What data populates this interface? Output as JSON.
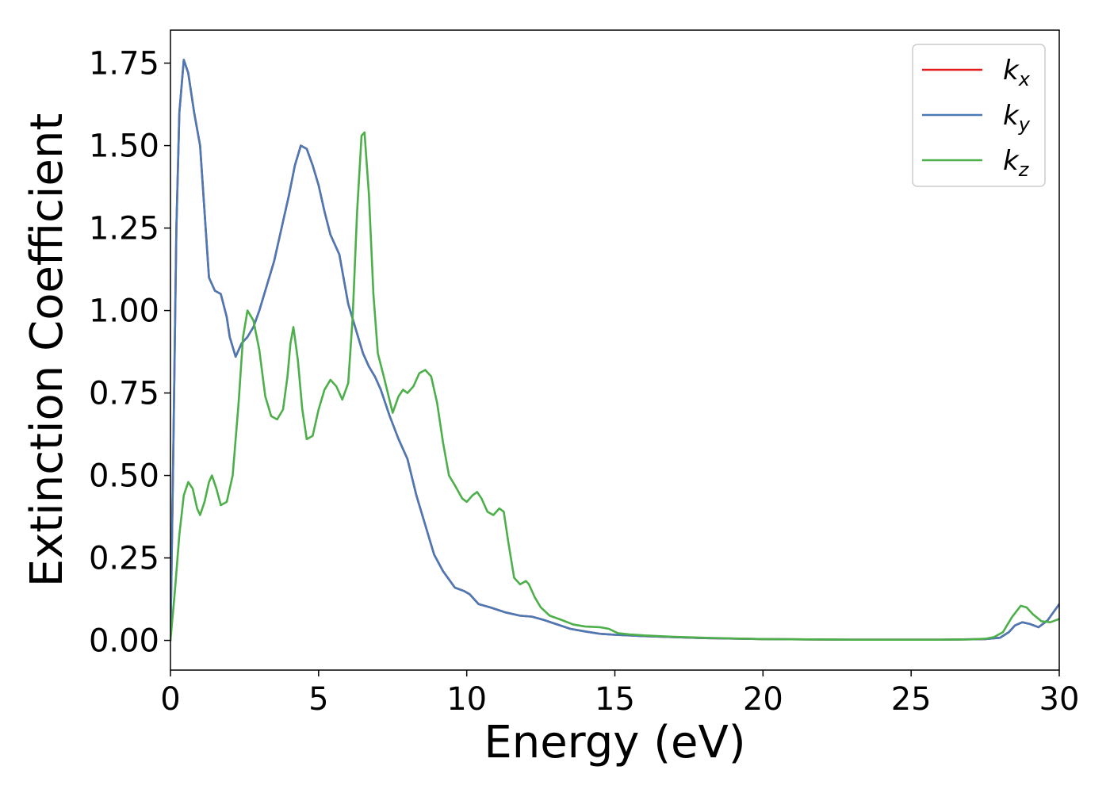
{
  "chart_data": {
    "type": "line",
    "title": "",
    "xlabel": "Energy (eV)",
    "ylabel": "Extinction Coefficient",
    "xlim": [
      0,
      30
    ],
    "ylim": [
      -0.09,
      1.85
    ],
    "xticks": [
      0,
      5,
      10,
      15,
      20,
      25,
      30
    ],
    "yticks": [
      0.0,
      0.25,
      0.5,
      0.75,
      1.0,
      1.25,
      1.5,
      1.75
    ],
    "ytick_labels": [
      "0.00",
      "0.25",
      "0.50",
      "0.75",
      "1.00",
      "1.25",
      "1.50",
      "1.75"
    ],
    "grid": false,
    "legend": "top-right",
    "series": [
      {
        "name": "k",
        "subscript": "x",
        "color": "#e41a1c",
        "points": [
          [
            0,
            0
          ],
          [
            0.1,
            0.6
          ],
          [
            0.2,
            1.25
          ],
          [
            0.3,
            1.6
          ],
          [
            0.45,
            1.76
          ],
          [
            0.6,
            1.72
          ],
          [
            0.8,
            1.6
          ],
          [
            1.0,
            1.5
          ],
          [
            1.15,
            1.3
          ],
          [
            1.3,
            1.1
          ],
          [
            1.5,
            1.06
          ],
          [
            1.7,
            1.05
          ],
          [
            1.9,
            0.98
          ],
          [
            2.0,
            0.92
          ],
          [
            2.2,
            0.86
          ],
          [
            2.4,
            0.9
          ],
          [
            2.6,
            0.92
          ],
          [
            2.8,
            0.95
          ],
          [
            3.0,
            1.0
          ],
          [
            3.2,
            1.06
          ],
          [
            3.5,
            1.15
          ],
          [
            3.8,
            1.27
          ],
          [
            4.0,
            1.35
          ],
          [
            4.2,
            1.44
          ],
          [
            4.4,
            1.5
          ],
          [
            4.6,
            1.49
          ],
          [
            4.8,
            1.44
          ],
          [
            5.0,
            1.38
          ],
          [
            5.2,
            1.3
          ],
          [
            5.4,
            1.23
          ],
          [
            5.7,
            1.17
          ],
          [
            6.0,
            1.02
          ],
          [
            6.3,
            0.93
          ],
          [
            6.5,
            0.87
          ],
          [
            6.7,
            0.83
          ],
          [
            6.9,
            0.8
          ],
          [
            7.1,
            0.76
          ],
          [
            7.4,
            0.68
          ],
          [
            7.7,
            0.61
          ],
          [
            8.0,
            0.55
          ],
          [
            8.3,
            0.44
          ],
          [
            8.6,
            0.35
          ],
          [
            8.9,
            0.26
          ],
          [
            9.2,
            0.21
          ],
          [
            9.6,
            0.16
          ],
          [
            9.9,
            0.15
          ],
          [
            10.1,
            0.14
          ],
          [
            10.4,
            0.11
          ],
          [
            10.8,
            0.1
          ],
          [
            11.3,
            0.085
          ],
          [
            11.8,
            0.075
          ],
          [
            12.2,
            0.072
          ],
          [
            12.6,
            0.062
          ],
          [
            13.0,
            0.05
          ],
          [
            13.5,
            0.035
          ],
          [
            14.0,
            0.027
          ],
          [
            14.5,
            0.02
          ],
          [
            15.0,
            0.017
          ],
          [
            16.0,
            0.013
          ],
          [
            17.0,
            0.01
          ],
          [
            18.0,
            0.007
          ],
          [
            20.0,
            0.004
          ],
          [
            23.0,
            0.002
          ],
          [
            26.0,
            0.002
          ],
          [
            27.5,
            0.004
          ],
          [
            28.0,
            0.008
          ],
          [
            28.3,
            0.025
          ],
          [
            28.5,
            0.045
          ],
          [
            28.75,
            0.055
          ],
          [
            29.0,
            0.05
          ],
          [
            29.3,
            0.04
          ],
          [
            29.6,
            0.06
          ],
          [
            30.0,
            0.11
          ]
        ]
      },
      {
        "name": "k",
        "subscript": "y",
        "color": "#4a7ab5",
        "points": [
          [
            0,
            0
          ],
          [
            0.1,
            0.6
          ],
          [
            0.2,
            1.25
          ],
          [
            0.3,
            1.6
          ],
          [
            0.45,
            1.76
          ],
          [
            0.6,
            1.72
          ],
          [
            0.8,
            1.6
          ],
          [
            1.0,
            1.5
          ],
          [
            1.15,
            1.3
          ],
          [
            1.3,
            1.1
          ],
          [
            1.5,
            1.06
          ],
          [
            1.7,
            1.05
          ],
          [
            1.9,
            0.98
          ],
          [
            2.0,
            0.92
          ],
          [
            2.2,
            0.86
          ],
          [
            2.4,
            0.9
          ],
          [
            2.6,
            0.92
          ],
          [
            2.8,
            0.95
          ],
          [
            3.0,
            1.0
          ],
          [
            3.2,
            1.06
          ],
          [
            3.5,
            1.15
          ],
          [
            3.8,
            1.27
          ],
          [
            4.0,
            1.35
          ],
          [
            4.2,
            1.44
          ],
          [
            4.4,
            1.5
          ],
          [
            4.6,
            1.49
          ],
          [
            4.8,
            1.44
          ],
          [
            5.0,
            1.38
          ],
          [
            5.2,
            1.3
          ],
          [
            5.4,
            1.23
          ],
          [
            5.7,
            1.17
          ],
          [
            6.0,
            1.02
          ],
          [
            6.3,
            0.93
          ],
          [
            6.5,
            0.87
          ],
          [
            6.7,
            0.83
          ],
          [
            6.9,
            0.8
          ],
          [
            7.1,
            0.76
          ],
          [
            7.4,
            0.68
          ],
          [
            7.7,
            0.61
          ],
          [
            8.0,
            0.55
          ],
          [
            8.3,
            0.44
          ],
          [
            8.6,
            0.35
          ],
          [
            8.9,
            0.26
          ],
          [
            9.2,
            0.21
          ],
          [
            9.6,
            0.16
          ],
          [
            9.9,
            0.15
          ],
          [
            10.1,
            0.14
          ],
          [
            10.4,
            0.11
          ],
          [
            10.8,
            0.1
          ],
          [
            11.3,
            0.085
          ],
          [
            11.8,
            0.075
          ],
          [
            12.2,
            0.072
          ],
          [
            12.6,
            0.062
          ],
          [
            13.0,
            0.05
          ],
          [
            13.5,
            0.035
          ],
          [
            14.0,
            0.027
          ],
          [
            14.5,
            0.02
          ],
          [
            15.0,
            0.017
          ],
          [
            16.0,
            0.013
          ],
          [
            17.0,
            0.01
          ],
          [
            18.0,
            0.007
          ],
          [
            20.0,
            0.004
          ],
          [
            23.0,
            0.002
          ],
          [
            26.0,
            0.002
          ],
          [
            27.5,
            0.004
          ],
          [
            28.0,
            0.008
          ],
          [
            28.3,
            0.025
          ],
          [
            28.5,
            0.045
          ],
          [
            28.75,
            0.055
          ],
          [
            29.0,
            0.05
          ],
          [
            29.3,
            0.04
          ],
          [
            29.6,
            0.06
          ],
          [
            30.0,
            0.11
          ]
        ]
      },
      {
        "name": "k",
        "subscript": "z",
        "color": "#4daf4a",
        "points": [
          [
            0,
            0
          ],
          [
            0.15,
            0.15
          ],
          [
            0.3,
            0.32
          ],
          [
            0.45,
            0.44
          ],
          [
            0.6,
            0.48
          ],
          [
            0.75,
            0.46
          ],
          [
            0.9,
            0.4
          ],
          [
            1.0,
            0.38
          ],
          [
            1.15,
            0.42
          ],
          [
            1.3,
            0.48
          ],
          [
            1.4,
            0.5
          ],
          [
            1.55,
            0.46
          ],
          [
            1.7,
            0.41
          ],
          [
            1.9,
            0.42
          ],
          [
            2.1,
            0.5
          ],
          [
            2.3,
            0.72
          ],
          [
            2.45,
            0.92
          ],
          [
            2.6,
            1.0
          ],
          [
            2.8,
            0.97
          ],
          [
            3.0,
            0.88
          ],
          [
            3.2,
            0.74
          ],
          [
            3.4,
            0.68
          ],
          [
            3.6,
            0.67
          ],
          [
            3.8,
            0.7
          ],
          [
            3.95,
            0.8
          ],
          [
            4.05,
            0.9
          ],
          [
            4.15,
            0.95
          ],
          [
            4.3,
            0.85
          ],
          [
            4.45,
            0.7
          ],
          [
            4.6,
            0.61
          ],
          [
            4.8,
            0.62
          ],
          [
            5.0,
            0.7
          ],
          [
            5.2,
            0.76
          ],
          [
            5.4,
            0.79
          ],
          [
            5.6,
            0.77
          ],
          [
            5.8,
            0.73
          ],
          [
            6.0,
            0.78
          ],
          [
            6.15,
            0.98
          ],
          [
            6.3,
            1.3
          ],
          [
            6.45,
            1.53
          ],
          [
            6.55,
            1.54
          ],
          [
            6.7,
            1.35
          ],
          [
            6.85,
            1.05
          ],
          [
            7.0,
            0.87
          ],
          [
            7.2,
            0.8
          ],
          [
            7.5,
            0.69
          ],
          [
            7.7,
            0.74
          ],
          [
            7.85,
            0.76
          ],
          [
            8.0,
            0.75
          ],
          [
            8.2,
            0.77
          ],
          [
            8.4,
            0.81
          ],
          [
            8.6,
            0.82
          ],
          [
            8.8,
            0.8
          ],
          [
            9.0,
            0.72
          ],
          [
            9.2,
            0.6
          ],
          [
            9.4,
            0.5
          ],
          [
            9.6,
            0.47
          ],
          [
            9.85,
            0.43
          ],
          [
            10.0,
            0.42
          ],
          [
            10.2,
            0.44
          ],
          [
            10.35,
            0.45
          ],
          [
            10.5,
            0.43
          ],
          [
            10.7,
            0.39
          ],
          [
            10.9,
            0.38
          ],
          [
            11.1,
            0.4
          ],
          [
            11.25,
            0.39
          ],
          [
            11.4,
            0.3
          ],
          [
            11.6,
            0.19
          ],
          [
            11.8,
            0.17
          ],
          [
            12.0,
            0.18
          ],
          [
            12.1,
            0.17
          ],
          [
            12.3,
            0.13
          ],
          [
            12.5,
            0.1
          ],
          [
            12.8,
            0.075
          ],
          [
            13.2,
            0.062
          ],
          [
            13.6,
            0.048
          ],
          [
            14.0,
            0.042
          ],
          [
            14.5,
            0.04
          ],
          [
            14.8,
            0.035
          ],
          [
            15.1,
            0.022
          ],
          [
            15.5,
            0.018
          ],
          [
            16.0,
            0.015
          ],
          [
            17.0,
            0.011
          ],
          [
            18.0,
            0.008
          ],
          [
            20.0,
            0.004
          ],
          [
            23.0,
            0.002
          ],
          [
            26.0,
            0.002
          ],
          [
            27.0,
            0.003
          ],
          [
            27.5,
            0.005
          ],
          [
            27.8,
            0.01
          ],
          [
            28.1,
            0.025
          ],
          [
            28.4,
            0.07
          ],
          [
            28.7,
            0.105
          ],
          [
            28.9,
            0.1
          ],
          [
            29.1,
            0.08
          ],
          [
            29.4,
            0.058
          ],
          [
            29.7,
            0.055
          ],
          [
            30.0,
            0.065
          ]
        ]
      }
    ]
  }
}
